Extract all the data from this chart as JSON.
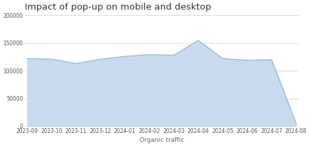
{
  "title": "Impact of pop-up on mobile and desktop",
  "xlabel": "Organic traffic",
  "ylabel": "",
  "x_labels": [
    "2023-09",
    "2023-10",
    "2023-11",
    "2023-12",
    "2024-01",
    "2024-02",
    "2024-03",
    "2024-04",
    "2024-05",
    "2024-06",
    "2024-07",
    "2024-08"
  ],
  "y_values": [
    122000,
    121000,
    113000,
    121000,
    126000,
    129000,
    128000,
    155000,
    122000,
    119000,
    120000,
    5000
  ],
  "ylim": [
    0,
    200000
  ],
  "yticks": [
    0,
    50000,
    100000,
    150000,
    200000
  ],
  "ytick_labels": [
    "0",
    "50000",
    "100000",
    "150000",
    "200000"
  ],
  "line_color": "#8ab4d8",
  "fill_color": "#c8daee",
  "title_fontsize": 9.5,
  "tick_fontsize": 5.5,
  "xlabel_fontsize": 6.5,
  "background_color": "#ffffff",
  "grid_color": "#cccccc"
}
